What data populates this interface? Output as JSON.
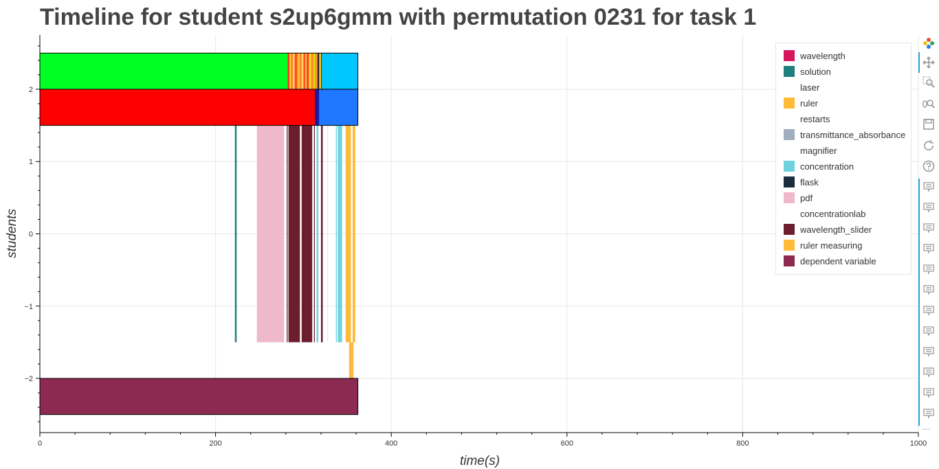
{
  "title": "Timeline for student s2up6gmm with permutation 0231 for task 1",
  "chart_data": {
    "type": "timeline",
    "xlabel": "time(s)",
    "ylabel": "students",
    "xlim": [
      0,
      1000
    ],
    "ylim": [
      -2.75,
      2.75
    ],
    "x_ticks": [
      0,
      200,
      400,
      600,
      800,
      1000
    ],
    "y_ticks": [
      2,
      1,
      0,
      -1,
      -2
    ],
    "x_tick_labels": [
      "0",
      "200",
      "400",
      "600",
      "800",
      "1000"
    ],
    "y_tick_labels": [
      "2",
      "1",
      "0",
      "−1",
      "−2"
    ],
    "grid": true,
    "legend_position": "top-right",
    "legend": [
      {
        "label": "wavelength",
        "color": "#d6175c"
      },
      {
        "label": "solution",
        "color": "#207e7e"
      },
      {
        "label": "laser",
        "color": null
      },
      {
        "label": "ruler",
        "color": "#ffba3a"
      },
      {
        "label": "restarts",
        "color": null
      },
      {
        "label": "transmittance_absorbance",
        "color": "#a2adbd"
      },
      {
        "label": "magnifier",
        "color": null
      },
      {
        "label": "concentration",
        "color": "#6ed3df"
      },
      {
        "label": "flask",
        "color": "#1b2b40"
      },
      {
        "label": "pdf",
        "color": "#efb8cb"
      },
      {
        "label": "concentrationlab",
        "color": null
      },
      {
        "label": "wavelength_slider",
        "color": "#6b1e2e"
      },
      {
        "label": "ruler measuring",
        "color": "#ffba3a"
      },
      {
        "label": "dependent variable",
        "color": "#8c2a52"
      }
    ],
    "bands": [
      {
        "name": "row-top",
        "y0": 2.0,
        "y1": 2.5,
        "segments": [
          {
            "x0": 0,
            "x1": 282,
            "color": "#00ff24"
          },
          {
            "x0": 282,
            "x1": 284,
            "color": "#ff2b1b"
          },
          {
            "x0": 284,
            "x1": 286,
            "color": "#ffcc33"
          },
          {
            "x0": 286,
            "x1": 288,
            "color": "#ff7a1f"
          },
          {
            "x0": 288,
            "x1": 290,
            "color": "#ffd866"
          },
          {
            "x0": 290,
            "x1": 293,
            "color": "#ff4f1f"
          },
          {
            "x0": 293,
            "x1": 296,
            "color": "#ffb63a"
          },
          {
            "x0": 296,
            "x1": 298,
            "color": "#ff7a1f"
          },
          {
            "x0": 298,
            "x1": 300,
            "color": "#ffd866"
          },
          {
            "x0": 300,
            "x1": 302,
            "color": "#ff4f1f"
          },
          {
            "x0": 302,
            "x1": 304,
            "color": "#ffb63a"
          },
          {
            "x0": 304,
            "x1": 306,
            "color": "#ff2b1b"
          },
          {
            "x0": 306,
            "x1": 309,
            "color": "#ffcc33"
          },
          {
            "x0": 309,
            "x1": 311,
            "color": "#ff7a1f"
          },
          {
            "x0": 311,
            "x1": 313,
            "color": "#c7e600"
          },
          {
            "x0": 313,
            "x1": 316,
            "color": "#ff9a1f"
          },
          {
            "x0": 316,
            "x1": 318,
            "color": "#2a1a3a"
          },
          {
            "x0": 318,
            "x1": 320,
            "color": "#ffd21f"
          },
          {
            "x0": 320,
            "x1": 321,
            "color": "#1b2b40"
          },
          {
            "x0": 321,
            "x1": 362,
            "color": "#00c8ff"
          }
        ]
      },
      {
        "name": "row-second",
        "y0": 1.5,
        "y1": 2.0,
        "segments": [
          {
            "x0": 0,
            "x1": 313,
            "color": "#ff0000"
          },
          {
            "x0": 313,
            "x1": 318,
            "color": "#1a1aa0"
          },
          {
            "x0": 318,
            "x1": 362,
            "color": "#1f78ff"
          }
        ]
      },
      {
        "name": "row-events",
        "y0": -1.5,
        "y1": 1.5,
        "segments": [
          {
            "x0": 222,
            "x1": 224,
            "color": "#207e7e"
          },
          {
            "x0": 247,
            "x1": 278,
            "color": "#efb8cb"
          },
          {
            "x0": 281,
            "x1": 282,
            "color": "#6b1e2e"
          },
          {
            "x0": 283,
            "x1": 296,
            "color": "#6b1e2e"
          },
          {
            "x0": 298,
            "x1": 310,
            "color": "#6b1e2e"
          },
          {
            "x0": 312,
            "x1": 313,
            "color": "#6b1e2e"
          },
          {
            "x0": 315,
            "x1": 317,
            "color": "#6ed3df"
          },
          {
            "x0": 320,
            "x1": 322,
            "color": "#6b1e2e"
          },
          {
            "x0": 327,
            "x1": 328,
            "color": "#d7eef2"
          },
          {
            "x0": 337,
            "x1": 338,
            "color": "#6ed3df"
          },
          {
            "x0": 339,
            "x1": 344,
            "color": "#6ed3df"
          },
          {
            "x0": 348,
            "x1": 354,
            "color": "#ffba3a"
          },
          {
            "x0": 356,
            "x1": 359,
            "color": "#ffba3a"
          }
        ]
      },
      {
        "name": "row-ruler",
        "y0": -2.0,
        "y1": -1.5,
        "segments": [
          {
            "x0": 352,
            "x1": 357,
            "color": "#ffba3a"
          }
        ]
      },
      {
        "name": "row-bottom",
        "y0": -2.5,
        "y1": -2.0,
        "segments": [
          {
            "x0": 0,
            "x1": 362,
            "color": "#8c2a52"
          }
        ]
      }
    ]
  },
  "toolbar": {
    "tools": [
      {
        "name": "bokeh-logo-icon"
      },
      {
        "name": "pan-icon"
      },
      {
        "name": "box-zoom-icon"
      },
      {
        "name": "wheel-zoom-icon"
      },
      {
        "name": "save-icon"
      },
      {
        "name": "reset-icon"
      },
      {
        "name": "help-icon"
      },
      {
        "name": "hover-icon"
      },
      {
        "name": "hover-icon"
      },
      {
        "name": "hover-icon"
      },
      {
        "name": "hover-icon"
      },
      {
        "name": "hover-icon"
      },
      {
        "name": "hover-icon"
      },
      {
        "name": "hover-icon"
      },
      {
        "name": "hover-icon"
      },
      {
        "name": "hover-icon"
      },
      {
        "name": "hover-icon"
      },
      {
        "name": "hover-icon"
      },
      {
        "name": "hover-icon"
      }
    ],
    "more_label": "⋯",
    "accent_color": "#26a3e0"
  }
}
